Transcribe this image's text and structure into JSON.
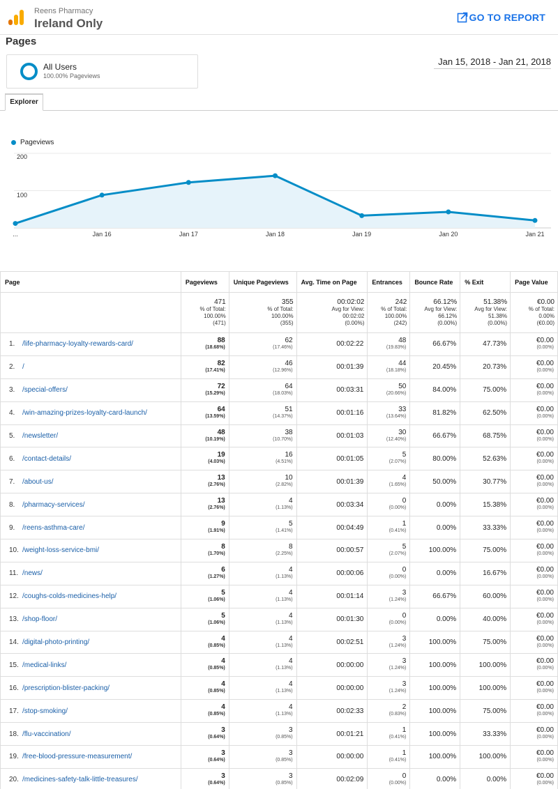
{
  "header": {
    "account": "Reens Pharmacy",
    "property": "Ireland Only",
    "goto_label": "GO TO REPORT",
    "colors": {
      "accent": "#1a73e8",
      "logo_orange": "#f9ab00",
      "logo_dark": "#e37400"
    }
  },
  "page_title": "Pages",
  "segment": {
    "name": "All Users",
    "sub": "100.00% Pageviews",
    "color": "#058dc7"
  },
  "daterange": "Jan 15, 2018 - Jan 21, 2018",
  "tabs": [
    {
      "label": "Explorer",
      "active": true
    }
  ],
  "chart_data": {
    "type": "area",
    "series": [
      {
        "name": "Pageviews",
        "values": [
          12,
          88,
          122,
          140,
          33,
          43,
          20
        ],
        "color": "#058dc7"
      }
    ],
    "x": [
      "Jan 15",
      "Jan 16",
      "Jan 17",
      "Jan 18",
      "Jan 19",
      "Jan 20",
      "Jan 21"
    ],
    "x_tick_labels": [
      "...",
      "Jan 16",
      "Jan 17",
      "Jan 18",
      "Jan 19",
      "Jan 20",
      "Jan 21"
    ],
    "y_ticks": [
      "100",
      "200"
    ],
    "ylim": [
      0,
      200
    ],
    "grid": true,
    "legend": "top-left"
  },
  "table": {
    "headers": [
      "Page",
      "Pageviews",
      "Unique Pageviews",
      "Avg. Time on Page",
      "Entrances",
      "Bounce Rate",
      "% Exit",
      "Page Value"
    ],
    "totals": [
      {
        "value": "471",
        "l1": "% of Total:",
        "l2": "100.00%",
        "l3": "(471)"
      },
      {
        "value": "355",
        "l1": "% of Total:",
        "l2": "100.00%",
        "l3": "(355)"
      },
      {
        "value": "00:02:02",
        "l1": "Avg for View:",
        "l2": "00:02:02",
        "l3": "(0.00%)"
      },
      {
        "value": "242",
        "l1": "% of Total:",
        "l2": "100.00%",
        "l3": "(242)"
      },
      {
        "value": "66.12%",
        "l1": "Avg for View:",
        "l2": "66.12%",
        "l3": "(0.00%)"
      },
      {
        "value": "51.38%",
        "l1": "Avg for View:",
        "l2": "51.38%",
        "l3": "(0.00%)"
      },
      {
        "value": "€0.00",
        "l1": "% of Total:",
        "l2": "0.00%",
        "l3": "(€0.00)"
      }
    ],
    "rows": [
      {
        "idx": "1.",
        "page": "/life-pharmacy-loyalty-rewards-card/",
        "pv": "88",
        "pv_pct": "(18.68%)",
        "upv": "62",
        "upv_pct": "(17.46%)",
        "time": "00:02:22",
        "ent": "48",
        "ent_pct": "(19.83%)",
        "bounce": "66.67%",
        "exit": "47.73%",
        "value": "€0.00",
        "value_pct": "(0.00%)"
      },
      {
        "idx": "2.",
        "page": "/",
        "pv": "82",
        "pv_pct": "(17.41%)",
        "upv": "46",
        "upv_pct": "(12.96%)",
        "time": "00:01:39",
        "ent": "44",
        "ent_pct": "(18.18%)",
        "bounce": "20.45%",
        "exit": "20.73%",
        "value": "€0.00",
        "value_pct": "(0.00%)"
      },
      {
        "idx": "3.",
        "page": "/special-offers/",
        "pv": "72",
        "pv_pct": "(15.29%)",
        "upv": "64",
        "upv_pct": "(18.03%)",
        "time": "00:03:31",
        "ent": "50",
        "ent_pct": "(20.66%)",
        "bounce": "84.00%",
        "exit": "75.00%",
        "value": "€0.00",
        "value_pct": "(0.00%)"
      },
      {
        "idx": "4.",
        "page": "/win-amazing-prizes-loyalty-card-launch/",
        "pv": "64",
        "pv_pct": "(13.59%)",
        "upv": "51",
        "upv_pct": "(14.37%)",
        "time": "00:01:16",
        "ent": "33",
        "ent_pct": "(13.64%)",
        "bounce": "81.82%",
        "exit": "62.50%",
        "value": "€0.00",
        "value_pct": "(0.00%)"
      },
      {
        "idx": "5.",
        "page": "/newsletter/",
        "pv": "48",
        "pv_pct": "(10.19%)",
        "upv": "38",
        "upv_pct": "(10.70%)",
        "time": "00:01:03",
        "ent": "30",
        "ent_pct": "(12.40%)",
        "bounce": "66.67%",
        "exit": "68.75%",
        "value": "€0.00",
        "value_pct": "(0.00%)"
      },
      {
        "idx": "6.",
        "page": "/contact-details/",
        "pv": "19",
        "pv_pct": "(4.03%)",
        "upv": "16",
        "upv_pct": "(4.51%)",
        "time": "00:01:05",
        "ent": "5",
        "ent_pct": "(2.07%)",
        "bounce": "80.00%",
        "exit": "52.63%",
        "value": "€0.00",
        "value_pct": "(0.00%)"
      },
      {
        "idx": "7.",
        "page": "/about-us/",
        "pv": "13",
        "pv_pct": "(2.76%)",
        "upv": "10",
        "upv_pct": "(2.82%)",
        "time": "00:01:39",
        "ent": "4",
        "ent_pct": "(1.65%)",
        "bounce": "50.00%",
        "exit": "30.77%",
        "value": "€0.00",
        "value_pct": "(0.00%)"
      },
      {
        "idx": "8.",
        "page": "/pharmacy-services/",
        "pv": "13",
        "pv_pct": "(2.76%)",
        "upv": "4",
        "upv_pct": "(1.13%)",
        "time": "00:03:34",
        "ent": "0",
        "ent_pct": "(0.00%)",
        "bounce": "0.00%",
        "exit": "15.38%",
        "value": "€0.00",
        "value_pct": "(0.00%)"
      },
      {
        "idx": "9.",
        "page": "/reens-asthma-care/",
        "pv": "9",
        "pv_pct": "(1.91%)",
        "upv": "5",
        "upv_pct": "(1.41%)",
        "time": "00:04:49",
        "ent": "1",
        "ent_pct": "(0.41%)",
        "bounce": "0.00%",
        "exit": "33.33%",
        "value": "€0.00",
        "value_pct": "(0.00%)"
      },
      {
        "idx": "10.",
        "page": "/weight-loss-service-bmi/",
        "pv": "8",
        "pv_pct": "(1.70%)",
        "upv": "8",
        "upv_pct": "(2.25%)",
        "time": "00:00:57",
        "ent": "5",
        "ent_pct": "(2.07%)",
        "bounce": "100.00%",
        "exit": "75.00%",
        "value": "€0.00",
        "value_pct": "(0.00%)"
      },
      {
        "idx": "11.",
        "page": "/news/",
        "pv": "6",
        "pv_pct": "(1.27%)",
        "upv": "4",
        "upv_pct": "(1.13%)",
        "time": "00:00:06",
        "ent": "0",
        "ent_pct": "(0.00%)",
        "bounce": "0.00%",
        "exit": "16.67%",
        "value": "€0.00",
        "value_pct": "(0.00%)"
      },
      {
        "idx": "12.",
        "page": "/coughs-colds-medicines-help/",
        "pv": "5",
        "pv_pct": "(1.06%)",
        "upv": "4",
        "upv_pct": "(1.13%)",
        "time": "00:01:14",
        "ent": "3",
        "ent_pct": "(1.24%)",
        "bounce": "66.67%",
        "exit": "60.00%",
        "value": "€0.00",
        "value_pct": "(0.00%)"
      },
      {
        "idx": "13.",
        "page": "/shop-floor/",
        "pv": "5",
        "pv_pct": "(1.06%)",
        "upv": "4",
        "upv_pct": "(1.13%)",
        "time": "00:01:30",
        "ent": "0",
        "ent_pct": "(0.00%)",
        "bounce": "0.00%",
        "exit": "40.00%",
        "value": "€0.00",
        "value_pct": "(0.00%)"
      },
      {
        "idx": "14.",
        "page": "/digital-photo-printing/",
        "pv": "4",
        "pv_pct": "(0.85%)",
        "upv": "4",
        "upv_pct": "(1.13%)",
        "time": "00:02:51",
        "ent": "3",
        "ent_pct": "(1.24%)",
        "bounce": "100.00%",
        "exit": "75.00%",
        "value": "€0.00",
        "value_pct": "(0.00%)"
      },
      {
        "idx": "15.",
        "page": "/medical-links/",
        "pv": "4",
        "pv_pct": "(0.85%)",
        "upv": "4",
        "upv_pct": "(1.13%)",
        "time": "00:00:00",
        "ent": "3",
        "ent_pct": "(1.24%)",
        "bounce": "100.00%",
        "exit": "100.00%",
        "value": "€0.00",
        "value_pct": "(0.00%)"
      },
      {
        "idx": "16.",
        "page": "/prescription-blister-packing/",
        "pv": "4",
        "pv_pct": "(0.85%)",
        "upv": "4",
        "upv_pct": "(1.13%)",
        "time": "00:00:00",
        "ent": "3",
        "ent_pct": "(1.24%)",
        "bounce": "100.00%",
        "exit": "100.00%",
        "value": "€0.00",
        "value_pct": "(0.00%)"
      },
      {
        "idx": "17.",
        "page": "/stop-smoking/",
        "pv": "4",
        "pv_pct": "(0.85%)",
        "upv": "4",
        "upv_pct": "(1.13%)",
        "time": "00:02:33",
        "ent": "2",
        "ent_pct": "(0.83%)",
        "bounce": "100.00%",
        "exit": "75.00%",
        "value": "€0.00",
        "value_pct": "(0.00%)"
      },
      {
        "idx": "18.",
        "page": "/flu-vaccination/",
        "pv": "3",
        "pv_pct": "(0.64%)",
        "upv": "3",
        "upv_pct": "(0.85%)",
        "time": "00:01:21",
        "ent": "1",
        "ent_pct": "(0.41%)",
        "bounce": "100.00%",
        "exit": "33.33%",
        "value": "€0.00",
        "value_pct": "(0.00%)"
      },
      {
        "idx": "19.",
        "page": "/free-blood-pressure-measurement/",
        "pv": "3",
        "pv_pct": "(0.64%)",
        "upv": "3",
        "upv_pct": "(0.85%)",
        "time": "00:00:00",
        "ent": "1",
        "ent_pct": "(0.41%)",
        "bounce": "100.00%",
        "exit": "100.00%",
        "value": "€0.00",
        "value_pct": "(0.00%)"
      },
      {
        "idx": "20.",
        "page": "/medicines-safety-talk-little-treasures/",
        "pv": "3",
        "pv_pct": "(0.64%)",
        "upv": "3",
        "upv_pct": "(0.85%)",
        "time": "00:02:09",
        "ent": "0",
        "ent_pct": "(0.00%)",
        "bounce": "0.00%",
        "exit": "0.00%",
        "value": "€0.00",
        "value_pct": "(0.00%)"
      }
    ]
  }
}
